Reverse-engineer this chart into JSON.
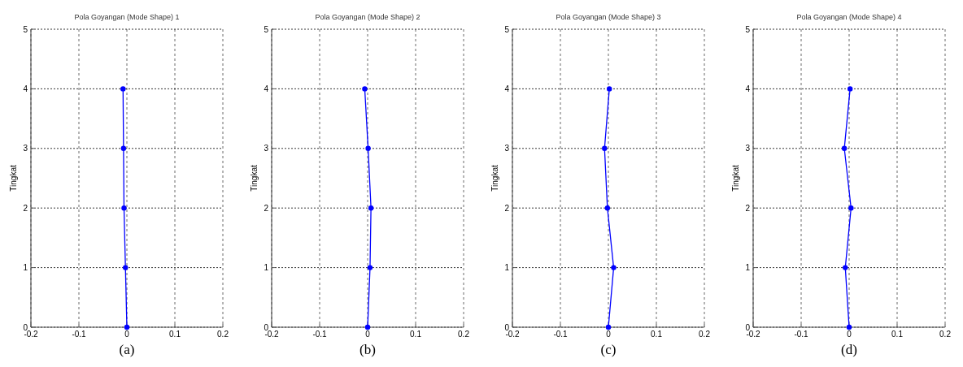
{
  "chart_data": [
    {
      "type": "line",
      "title": "Pola Goyangan (Mode Shape) 1",
      "ylabel": "Tingkat",
      "annotations": [
        "(a)"
      ],
      "series": [
        {
          "color": "#0000ff",
          "x": [
            0,
            -0.003,
            -0.006,
            -0.007,
            -0.008
          ],
          "values": [
            0,
            1,
            2,
            3,
            4
          ]
        }
      ],
      "xlim": [
        -0.2,
        0.2
      ],
      "xticks": [
        -0.2,
        -0.1,
        0,
        0.1,
        0.2
      ],
      "ylim": [
        0,
        5
      ],
      "yticks": [
        0,
        1,
        2,
        3,
        4,
        5
      ],
      "grid": true,
      "marker": "circle",
      "line_style": "solid"
    },
    {
      "type": "line",
      "title": "Pola Goyangan (Mode Shape) 2",
      "ylabel": "Tingkat",
      "annotations": [
        "(b)"
      ],
      "series": [
        {
          "color": "#0000ff",
          "x": [
            0,
            0.005,
            0.007,
            0.001,
            -0.006
          ],
          "values": [
            0,
            1,
            2,
            3,
            4
          ]
        }
      ],
      "xlim": [
        -0.2,
        0.2
      ],
      "xticks": [
        -0.2,
        -0.1,
        0,
        0.1,
        0.2
      ],
      "ylim": [
        0,
        5
      ],
      "yticks": [
        0,
        1,
        2,
        3,
        4,
        5
      ],
      "grid": true,
      "marker": "circle",
      "line_style": "solid"
    },
    {
      "type": "line",
      "title": "Pola Goyangan (Mode Shape) 3",
      "ylabel": "Tingkat",
      "annotations": [
        "(c)"
      ],
      "series": [
        {
          "color": "#0000ff",
          "x": [
            0,
            0.011,
            -0.002,
            -0.008,
            0.002
          ],
          "values": [
            0,
            1,
            2,
            3,
            4
          ]
        }
      ],
      "xlim": [
        -0.2,
        0.2
      ],
      "xticks": [
        -0.2,
        -0.1,
        0,
        0.1,
        0.2
      ],
      "ylim": [
        0,
        5
      ],
      "yticks": [
        0,
        1,
        2,
        3,
        4,
        5
      ],
      "grid": true,
      "marker": "circle",
      "line_style": "solid"
    },
    {
      "type": "line",
      "title": "Pola Goyangan (Mode Shape) 4",
      "ylabel": "Tingkat",
      "annotations": [
        "(d)"
      ],
      "series": [
        {
          "color": "#0000ff",
          "x": [
            0,
            -0.008,
            0.004,
            -0.01,
            0.002
          ],
          "values": [
            0,
            1,
            2,
            3,
            4
          ]
        }
      ],
      "xlim": [
        -0.2,
        0.2
      ],
      "xticks": [
        -0.2,
        -0.1,
        0,
        0.1,
        0.2
      ],
      "ylim": [
        0,
        5
      ],
      "yticks": [
        0,
        1,
        2,
        3,
        4,
        5
      ],
      "grid": true,
      "marker": "circle",
      "line_style": "solid"
    }
  ]
}
